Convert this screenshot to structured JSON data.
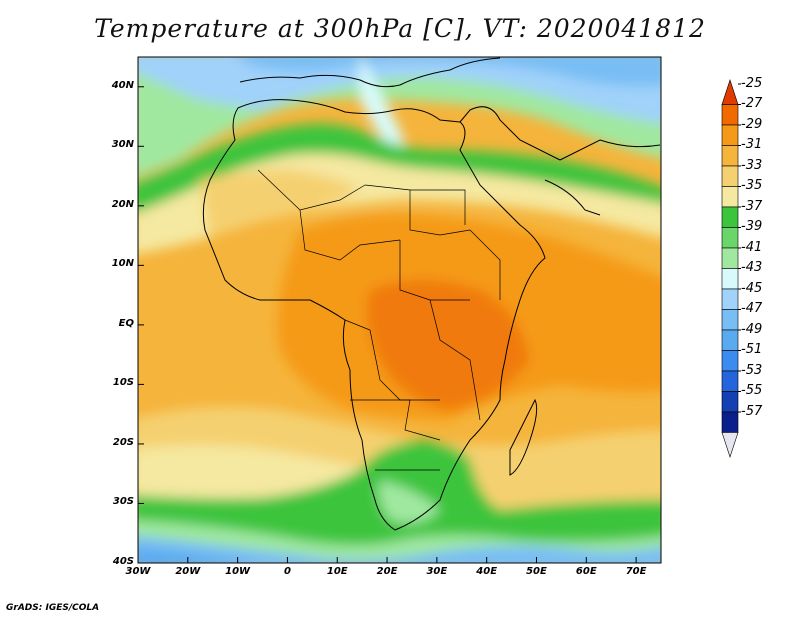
{
  "title": "Temperature at 300hPa [C], VT: 2020041812",
  "footer": "GrADS: IGES/COLA",
  "map": {
    "lon_range": [
      -30,
      75
    ],
    "lat_range": [
      -40,
      45
    ],
    "lat_ticks": [
      {
        "value": 40,
        "label": "40N"
      },
      {
        "value": 30,
        "label": "30N"
      },
      {
        "value": 20,
        "label": "20N"
      },
      {
        "value": 10,
        "label": "10N"
      },
      {
        "value": 0,
        "label": "EQ"
      },
      {
        "value": -10,
        "label": "10S"
      },
      {
        "value": -20,
        "label": "20S"
      },
      {
        "value": -30,
        "label": "30S"
      },
      {
        "value": -40,
        "label": "40S"
      }
    ],
    "lon_ticks": [
      {
        "value": -30,
        "label": "30W"
      },
      {
        "value": -20,
        "label": "20W"
      },
      {
        "value": -10,
        "label": "10W"
      },
      {
        "value": 0,
        "label": "0"
      },
      {
        "value": 10,
        "label": "10E"
      },
      {
        "value": 20,
        "label": "20E"
      },
      {
        "value": 30,
        "label": "30E"
      },
      {
        "value": 40,
        "label": "40E"
      },
      {
        "value": 50,
        "label": "50E"
      },
      {
        "value": 60,
        "label": "60E"
      },
      {
        "value": 70,
        "label": "70E"
      }
    ]
  },
  "colorbar": {
    "labels": [
      "-25",
      "-27",
      "-29",
      "-31",
      "-33",
      "-35",
      "-37",
      "-39",
      "-41",
      "-43",
      "-45",
      "-47",
      "-49",
      "-51",
      "-53",
      "-55",
      "-57"
    ],
    "colors": [
      "#e03c00",
      "#f06a00",
      "#f59a18",
      "#f5b43c",
      "#f5d070",
      "#f5e8a0",
      "#3cc43c",
      "#6ad66a",
      "#a0e8a0",
      "#d8fafa",
      "#a0d2fa",
      "#78bef5",
      "#5aaaf0",
      "#3c8cf0",
      "#2464dc",
      "#1440b4",
      "#0a1e8c",
      "#e6e6f0"
    ]
  }
}
